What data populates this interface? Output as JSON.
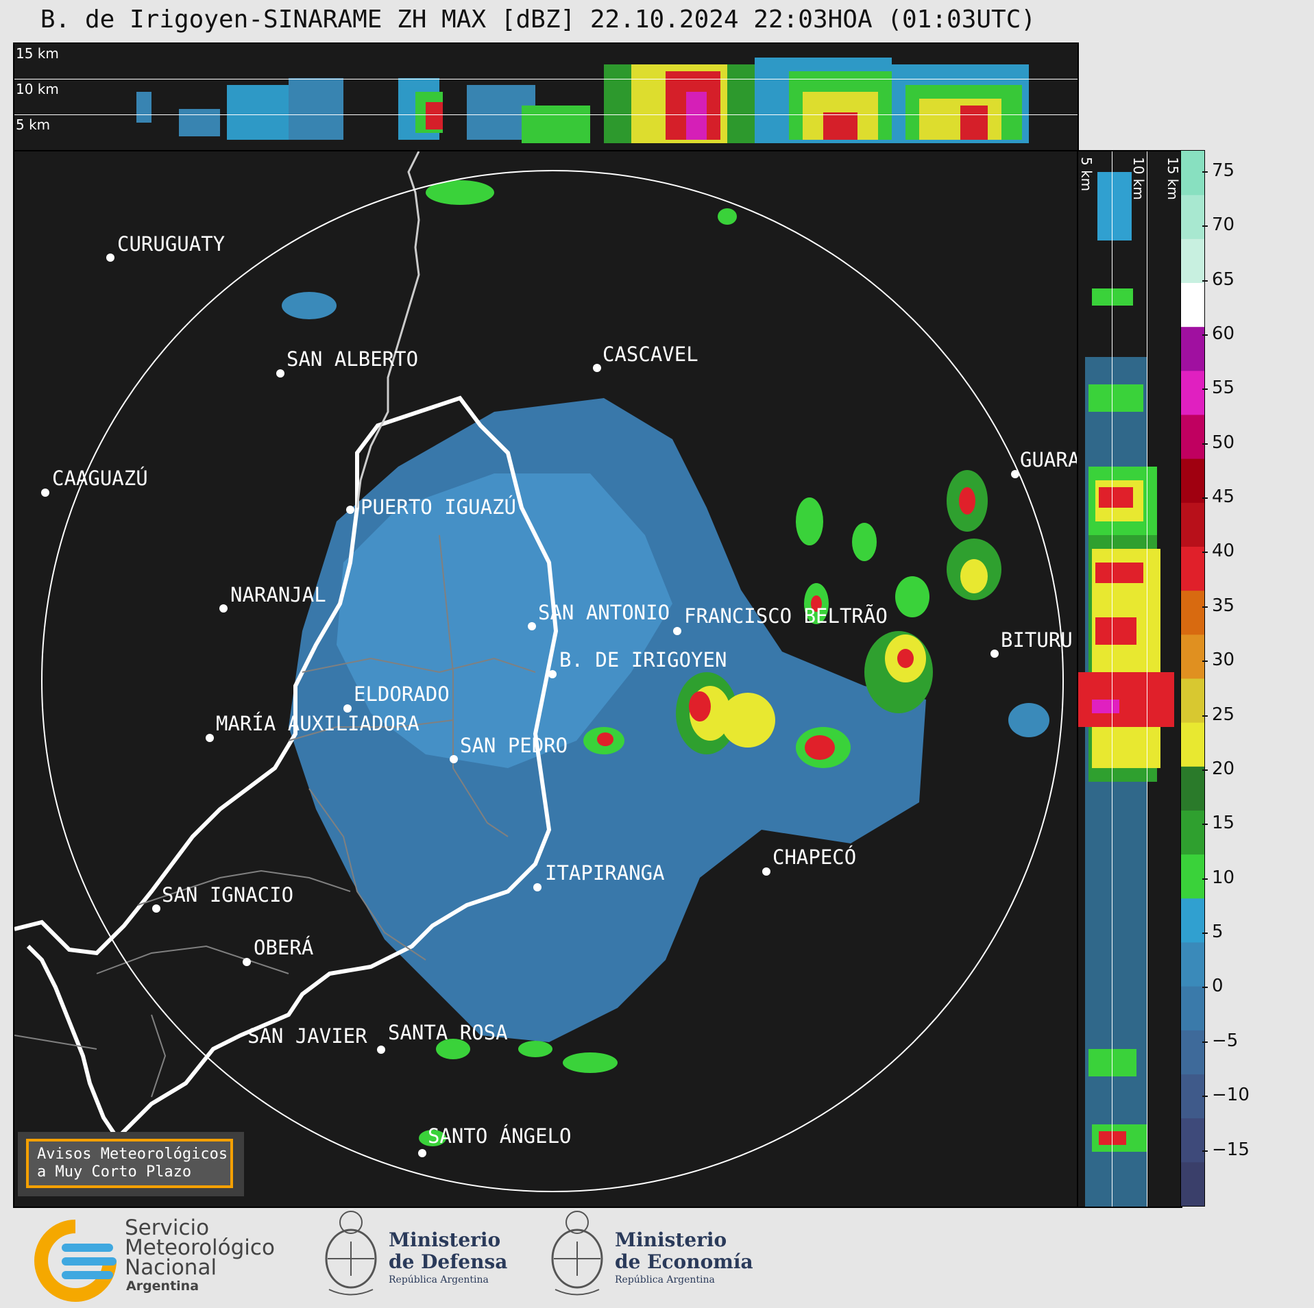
{
  "title": "B. de Irigoyen-SINARAME ZH MAX [dBZ] 22.10.2024 22:03HOA (01:03UTC)",
  "altitude_labels": [
    "15 km",
    "10 km",
    "5 km"
  ],
  "side_altitude_labels": [
    "5 km",
    "10 km",
    "15 km"
  ],
  "colorbar": {
    "unit": "dBZ",
    "ticks": [
      "75",
      "70",
      "65",
      "60",
      "55",
      "50",
      "45",
      "40",
      "35",
      "30",
      "25",
      "20",
      "15",
      "10",
      "5",
      "0",
      "−5",
      "−10",
      "−15"
    ],
    "colors": [
      "#3a3f6a",
      "#3e4a7a",
      "#3f5a8a",
      "#3e6a9a",
      "#3a7aaa",
      "#3a8aba",
      "#30a0d0",
      "#3ad23a",
      "#2fa02f",
      "#2a7a2a",
      "#e8e830",
      "#d8c830",
      "#e09020",
      "#d86a10",
      "#e0202a",
      "#b8101a",
      "#a00010",
      "#c00060",
      "#e020c0",
      "#a010a0",
      "#ffffff",
      "#c8f0e0",
      "#a8e8d0",
      "#88e0c0"
    ],
    "min": -20,
    "max": 77
  },
  "cities": [
    {
      "name": "CURUGUATY"
    },
    {
      "name": "SAN ALBERTO"
    },
    {
      "name": "CASCAVEL"
    },
    {
      "name": "CAAGUAZÚ"
    },
    {
      "name": "GUARA"
    },
    {
      "name": "PUERTO IGUAZÚ"
    },
    {
      "name": "NARANJAL"
    },
    {
      "name": "SAN ANTONIO"
    },
    {
      "name": "FRANCISCO BELTRÃO"
    },
    {
      "name": "B. DE IRIGOYEN"
    },
    {
      "name": "BITURU"
    },
    {
      "name": "ELDORADO"
    },
    {
      "name": "MARÍA AUXILIADORA"
    },
    {
      "name": "SAN PEDRO"
    },
    {
      "name": "CHAPECÓ"
    },
    {
      "name": "ITAPIRANGA"
    },
    {
      "name": "SAN IGNACIO"
    },
    {
      "name": "OBERÁ"
    },
    {
      "name": "SAN JAVIER"
    },
    {
      "name": "SANTA ROSA"
    },
    {
      "name": "SANTO ÁNGELO"
    }
  ],
  "aviso": {
    "line1": "Avisos Meteorológicos",
    "line2": "a Muy Corto Plazo"
  },
  "footer": {
    "smn": {
      "line1": "Servicio",
      "line2": "Meteorológico",
      "line3": "Nacional",
      "line4": "Argentina"
    },
    "defensa": {
      "line1": "Ministerio",
      "line2": "de Defensa",
      "line3": "República Argentina"
    },
    "economia": {
      "line1": "Ministerio",
      "line2": "de Economía",
      "line3": "República Argentina"
    }
  }
}
